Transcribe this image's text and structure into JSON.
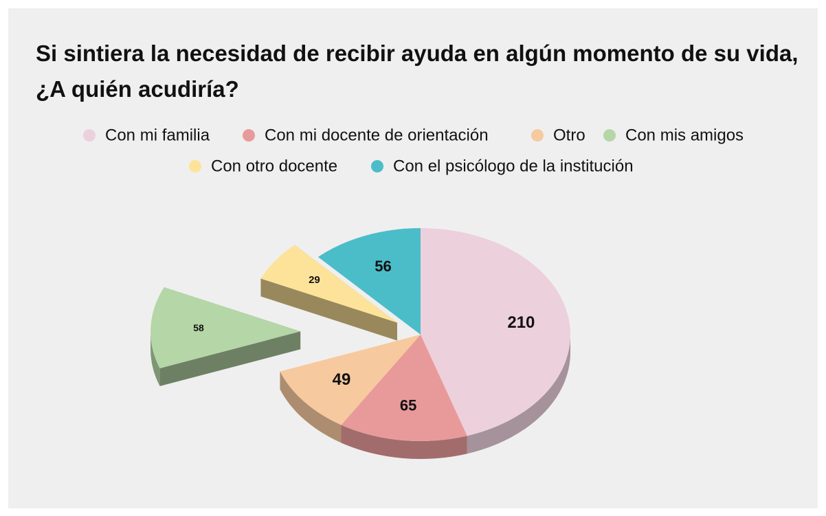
{
  "chart_data": {
    "type": "pie3d",
    "title": "Si sintiera la necesidad de recibir ayuda en algún momento de su vida, ¿A quién acudiría?",
    "categories": [
      "Con mi familia",
      "Con mi docente de orientación",
      "Otro",
      "Con mis amigos",
      "Con otro docente",
      "Con el psicólogo de la institución"
    ],
    "values": [
      210,
      65,
      49,
      58,
      29,
      56
    ],
    "colors": [
      "#ecd0dc",
      "#e89a9a",
      "#f7c99e",
      "#b5d6a7",
      "#fde39a",
      "#4bbdc9"
    ],
    "legend": "top"
  }
}
